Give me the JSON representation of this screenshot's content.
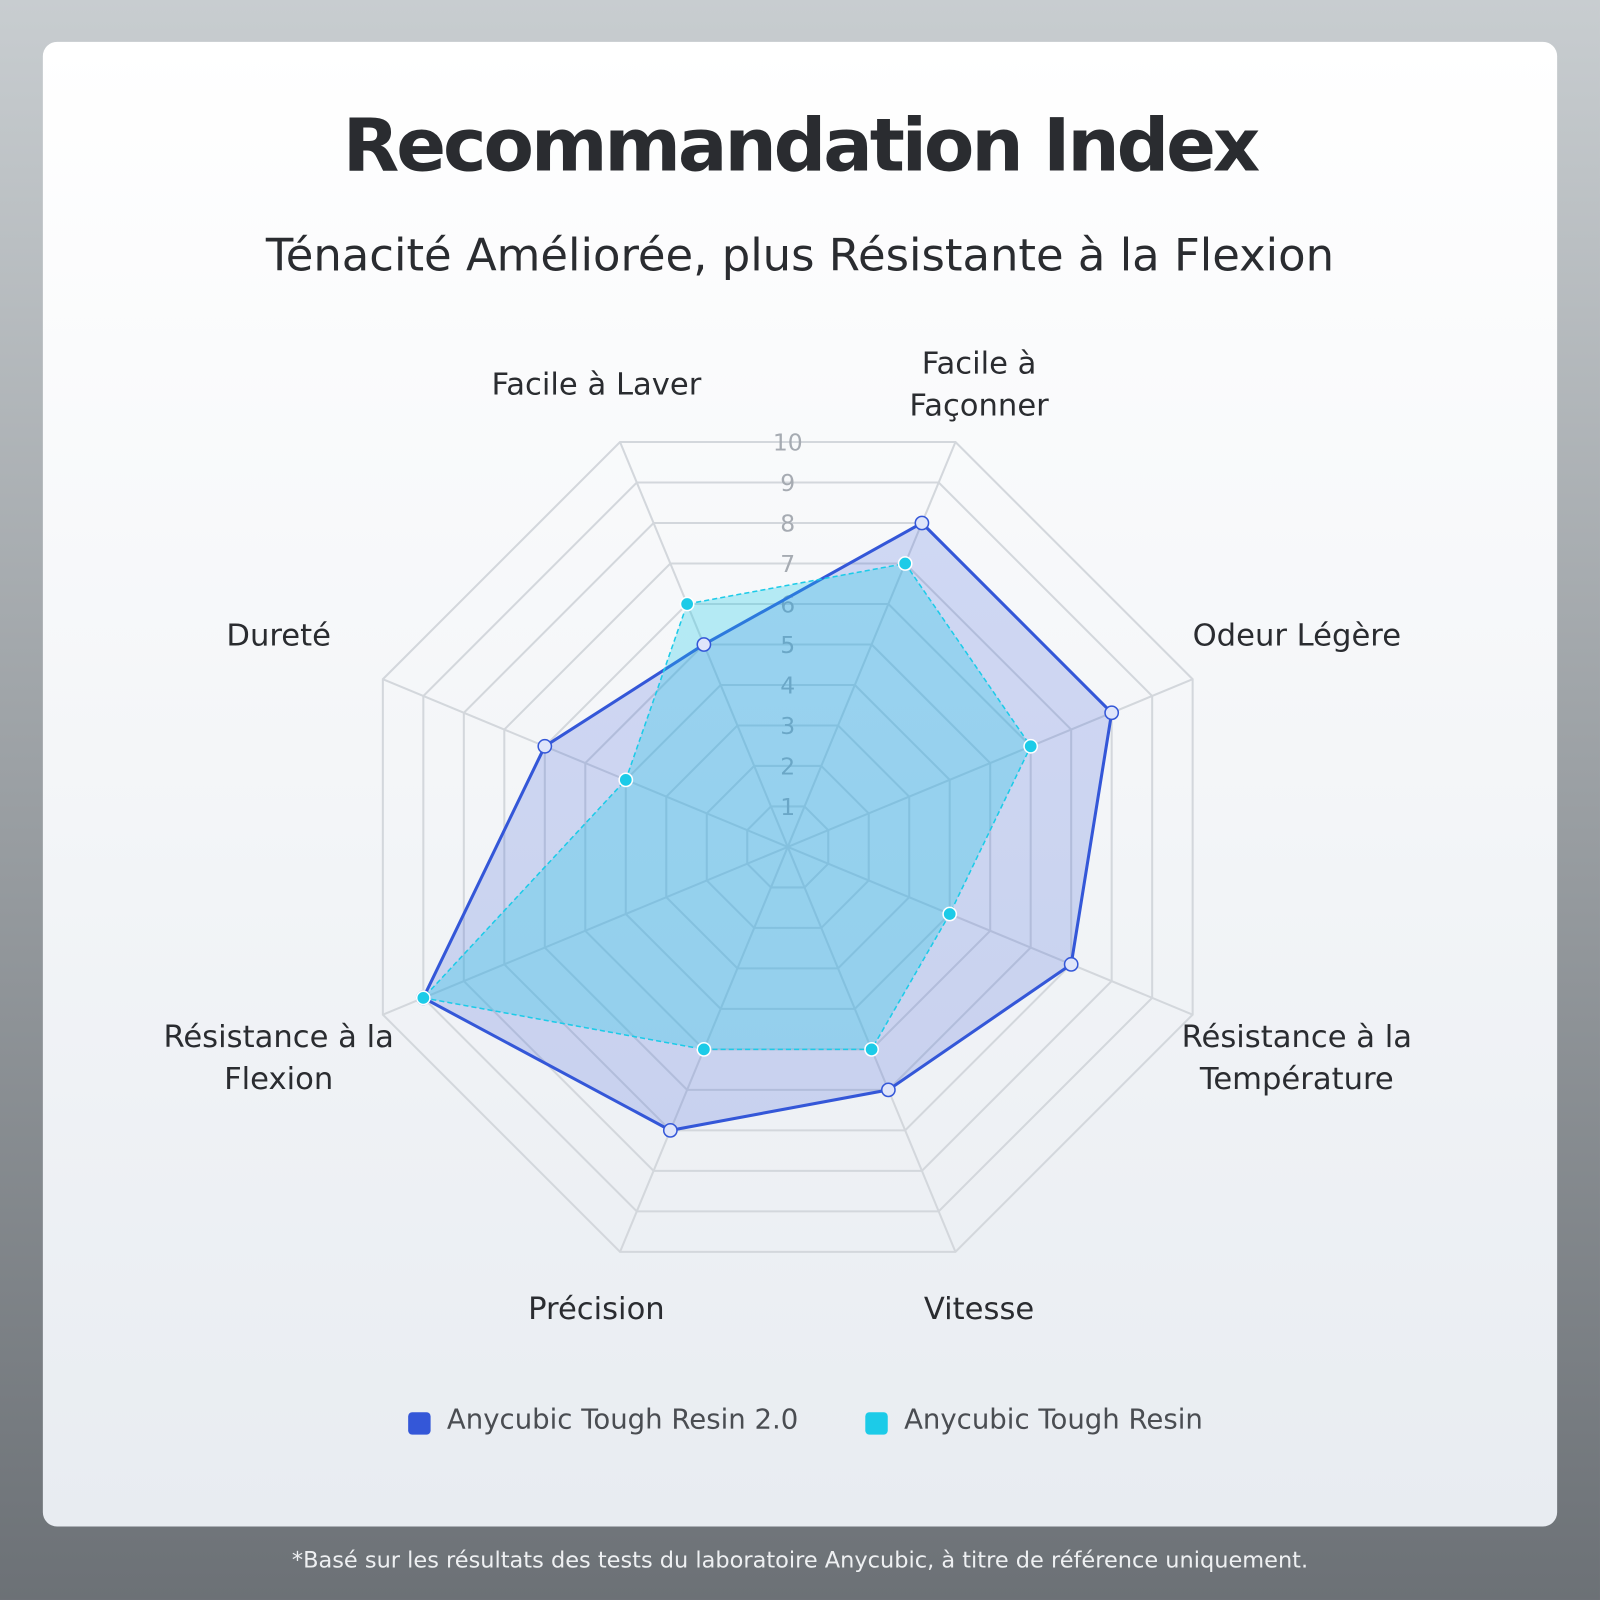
{
  "chart_data": {
    "type": "radar",
    "title": "Recommandation Index",
    "subtitle": "Ténacité Améliorée, plus Résistante à la Flexion",
    "categories": [
      "Facile à Façonner",
      "Odeur Légère",
      "Résistance à la Température",
      "Vitesse",
      "Précision",
      "Résistance à la Flexion",
      "Dureté",
      "Facile à Laver"
    ],
    "series": [
      {
        "name": "Anycubic Tough Resin 2.0",
        "color": "#3457d8",
        "values": [
          8,
          8,
          7,
          6,
          7,
          9,
          6,
          5
        ]
      },
      {
        "name": "Anycubic Tough Resin",
        "color": "#1ccbe8",
        "values": [
          7,
          6,
          4,
          5,
          5,
          9,
          4,
          6
        ]
      }
    ],
    "ylim": [
      0,
      10
    ],
    "yticks": [
      1,
      2,
      3,
      4,
      5,
      6,
      7,
      8,
      9,
      10
    ],
    "grid": true,
    "footnote": "*Basé sur les résultats des tests du laboratoire Anycubic, à titre de référence uniquement."
  }
}
